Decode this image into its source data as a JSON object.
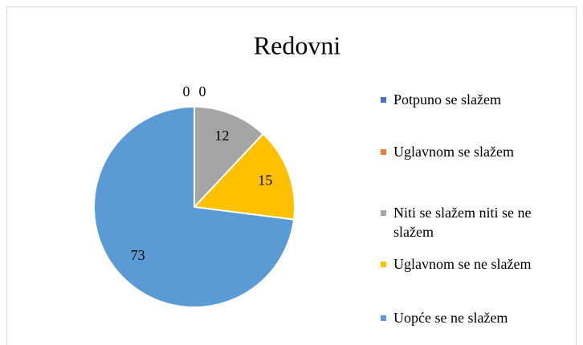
{
  "chart_data": {
    "type": "pie",
    "title": "Redovni",
    "categories": [
      "Potpuno se slažem",
      "Uglavnom se slažem",
      "Niti se slažem niti se ne slažem",
      "Uglavnom se ne slažem",
      "Uopće se ne slažem"
    ],
    "values": [
      0,
      0,
      12,
      15,
      73
    ],
    "colors": [
      "#4472c4",
      "#ed7d31",
      "#a5a5a5",
      "#ffc000",
      "#5b9bd5"
    ],
    "legend": "right"
  }
}
